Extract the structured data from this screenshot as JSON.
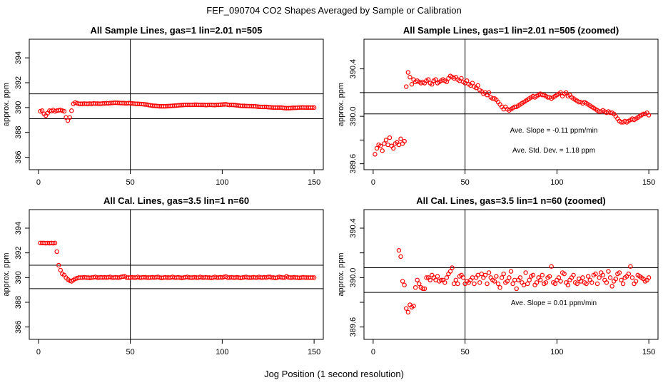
{
  "figure": {
    "title": "FEF_090704  CO2 Shapes Averaged by Sample or Calibration",
    "xlabel": "Jog Position (1 second resolution)"
  },
  "chart_data": [
    {
      "type": "scatter",
      "title": "All Sample Lines, gas=1 lin=2.01 n=505",
      "xlabel": "",
      "ylabel": "approx. ppm",
      "xlim": [
        -5,
        155
      ],
      "ylim": [
        385,
        395.5
      ],
      "xticks": [
        0,
        50,
        100,
        150
      ],
      "yticks": [
        386,
        388,
        390,
        392,
        394
      ],
      "hlines": [
        391.1,
        389.1
      ],
      "vline": 50,
      "annotations": [],
      "x": [
        1,
        2,
        3,
        4,
        5,
        6,
        7,
        8,
        9,
        10,
        11,
        12,
        13,
        14,
        15,
        16,
        17,
        18,
        19,
        20,
        21,
        22,
        23,
        24,
        25,
        26,
        27,
        28,
        29,
        30,
        31,
        32,
        33,
        34,
        35,
        36,
        37,
        38,
        39,
        40,
        41,
        42,
        43,
        44,
        45,
        46,
        47,
        48,
        49,
        50,
        51,
        52,
        53,
        54,
        55,
        56,
        57,
        58,
        59,
        60,
        61,
        62,
        63,
        64,
        65,
        66,
        67,
        68,
        69,
        70,
        71,
        72,
        73,
        74,
        75,
        76,
        77,
        78,
        79,
        80,
        81,
        82,
        83,
        84,
        85,
        86,
        87,
        88,
        89,
        90,
        91,
        92,
        93,
        94,
        95,
        96,
        97,
        98,
        99,
        100,
        101,
        102,
        103,
        104,
        105,
        106,
        107,
        108,
        109,
        110,
        111,
        112,
        113,
        114,
        115,
        116,
        117,
        118,
        119,
        120,
        121,
        122,
        123,
        124,
        125,
        126,
        127,
        128,
        129,
        130,
        131,
        132,
        133,
        134,
        135,
        136,
        137,
        138,
        139,
        140,
        141,
        142,
        143,
        144,
        145,
        146,
        147,
        148,
        149,
        150
      ],
      "y": [
        389.7,
        389.75,
        389.5,
        389.35,
        389.55,
        389.75,
        389.72,
        389.8,
        389.7,
        389.75,
        389.78,
        389.8,
        389.75,
        389.7,
        389.2,
        388.95,
        389.2,
        389.75,
        390.3,
        390.4,
        390.35,
        390.3,
        390.3,
        390.3,
        390.32,
        390.3,
        390.3,
        390.32,
        390.3,
        390.33,
        390.32,
        390.32,
        390.31,
        390.31,
        390.33,
        390.33,
        390.35,
        390.34,
        390.36,
        390.37,
        390.38,
        390.39,
        390.38,
        390.37,
        390.36,
        390.36,
        390.35,
        390.34,
        390.36,
        390.35,
        390.33,
        390.32,
        390.3,
        390.3,
        390.29,
        390.28,
        390.27,
        390.25,
        390.24,
        390.2,
        390.18,
        390.15,
        390.14,
        390.13,
        390.12,
        390.1,
        390.1,
        390.1,
        390.1,
        390.11,
        390.12,
        390.13,
        390.14,
        390.15,
        390.16,
        390.18,
        390.19,
        390.2,
        390.21,
        390.22,
        390.22,
        390.22,
        390.22,
        390.22,
        390.23,
        390.23,
        390.22,
        390.22,
        390.22,
        390.22,
        390.2,
        390.21,
        390.22,
        390.22,
        390.21,
        390.2,
        390.22,
        390.22,
        390.23,
        390.24,
        390.25,
        390.26,
        390.23,
        390.21,
        390.22,
        390.21,
        390.2,
        390.18,
        390.16,
        390.14,
        390.13,
        390.13,
        390.12,
        390.12,
        390.11,
        390.11,
        390.1,
        390.1,
        390.08,
        390.06,
        390.05,
        390.05,
        390.05,
        390.05,
        390.03,
        390.02,
        390.01,
        390.0,
        390.0,
        390.0,
        390.0,
        390.0,
        389.98,
        389.96,
        389.95,
        389.95,
        389.96,
        389.97,
        389.98,
        389.98,
        389.99,
        390.0,
        390.01,
        390.01,
        390.0,
        390.0,
        390.0,
        390.0,
        390.0,
        390.0
      ]
    },
    {
      "type": "scatter",
      "title": "All Sample Lines, gas=1 lin=2.01 n=505 (zoomed)",
      "xlabel": "",
      "ylabel": "approx. ppm",
      "xlim": [
        -5,
        155
      ],
      "ylim": [
        389.55,
        390.65
      ],
      "xticks": [
        0,
        50,
        100,
        150
      ],
      "yticks": [
        389.6,
        389.8,
        390.0,
        390.2,
        390.4
      ],
      "ytick_labels_shown": [
        "389.6",
        "390.0",
        "390.4"
      ],
      "hlines": [
        390.2,
        390.02
      ],
      "vline": 50,
      "annotations": [
        "Ave. Slope =  -0.11  ppm/min",
        "Ave. Std. Dev. =  1.18  ppm"
      ],
      "x": [
        1,
        2,
        3,
        4,
        5,
        6,
        7,
        8,
        9,
        10,
        11,
        12,
        13,
        14,
        15,
        16,
        17,
        18,
        19,
        20,
        21,
        22,
        23,
        24,
        25,
        26,
        27,
        28,
        29,
        30,
        31,
        32,
        33,
        34,
        35,
        36,
        37,
        38,
        39,
        40,
        41,
        42,
        43,
        44,
        45,
        46,
        47,
        48,
        49,
        50,
        51,
        52,
        53,
        54,
        55,
        56,
        57,
        58,
        59,
        60,
        61,
        62,
        63,
        64,
        65,
        66,
        67,
        68,
        69,
        70,
        71,
        72,
        73,
        74,
        75,
        76,
        77,
        78,
        79,
        80,
        81,
        82,
        83,
        84,
        85,
        86,
        87,
        88,
        89,
        90,
        91,
        92,
        93,
        94,
        95,
        96,
        97,
        98,
        99,
        100,
        101,
        102,
        103,
        104,
        105,
        106,
        107,
        108,
        109,
        110,
        111,
        112,
        113,
        114,
        115,
        116,
        117,
        118,
        119,
        120,
        121,
        122,
        123,
        124,
        125,
        126,
        127,
        128,
        129,
        130,
        131,
        132,
        133,
        134,
        135,
        136,
        137,
        138,
        139,
        140,
        141,
        142,
        143,
        144,
        145,
        146,
        147,
        148,
        149,
        150
      ],
      "y": [
        389.68,
        389.73,
        389.76,
        389.75,
        389.71,
        389.77,
        389.8,
        389.76,
        389.82,
        389.75,
        389.73,
        389.77,
        389.78,
        389.76,
        389.81,
        389.77,
        389.79,
        390.25,
        390.37,
        390.33,
        390.27,
        390.31,
        390.29,
        390.3,
        390.29,
        390.28,
        390.29,
        390.28,
        390.3,
        390.31,
        390.28,
        390.27,
        390.3,
        390.31,
        390.28,
        390.29,
        390.3,
        390.31,
        390.3,
        390.29,
        390.32,
        390.34,
        390.33,
        390.32,
        390.33,
        390.31,
        390.3,
        390.32,
        390.29,
        390.28,
        390.3,
        390.27,
        390.26,
        390.28,
        390.25,
        390.24,
        390.26,
        390.22,
        390.21,
        390.19,
        390.2,
        390.18,
        390.2,
        390.16,
        390.15,
        390.15,
        390.14,
        390.12,
        390.1,
        390.08,
        390.06,
        390.08,
        390.06,
        390.05,
        390.06,
        390.07,
        390.08,
        390.08,
        390.09,
        390.1,
        390.11,
        390.12,
        390.13,
        390.14,
        390.15,
        390.16,
        390.17,
        390.16,
        390.17,
        390.18,
        390.19,
        390.18,
        390.18,
        390.17,
        390.16,
        390.16,
        390.15,
        390.16,
        390.17,
        390.18,
        390.19,
        390.2,
        390.17,
        390.19,
        390.2,
        390.17,
        390.18,
        390.16,
        390.15,
        390.14,
        390.13,
        390.12,
        390.12,
        390.11,
        390.12,
        390.11,
        390.1,
        390.09,
        390.08,
        390.07,
        390.06,
        390.05,
        390.04,
        390.04,
        390.05,
        390.04,
        390.03,
        390.04,
        390.03,
        390.03,
        390.02,
        390.0,
        389.98,
        389.96,
        389.95,
        389.95,
        389.96,
        389.95,
        389.96,
        389.97,
        389.98,
        389.97,
        389.98,
        389.99,
        390.0,
        390.01,
        390.02,
        390.02,
        390.03,
        390.01
      ]
    },
    {
      "type": "scatter",
      "title": "All Cal. Lines, gas=3.5 lin=1 n=60",
      "xlabel": "",
      "ylabel": "approx. ppm",
      "xlim": [
        -5,
        155
      ],
      "ylim": [
        385,
        395.5
      ],
      "xticks": [
        0,
        50,
        100,
        150
      ],
      "yticks": [
        386,
        388,
        390,
        392,
        394
      ],
      "hlines": [
        391.0,
        389.1
      ],
      "vline": 50,
      "annotations": [],
      "x": [
        1,
        2,
        3,
        4,
        5,
        6,
        7,
        8,
        9,
        10,
        11,
        12,
        13,
        14,
        15,
        16,
        17,
        18,
        19,
        20,
        21,
        22,
        23,
        24,
        25,
        26,
        27,
        28,
        29,
        30,
        31,
        32,
        33,
        34,
        35,
        36,
        37,
        38,
        39,
        40,
        41,
        42,
        43,
        44,
        45,
        46,
        47,
        48,
        49,
        50,
        51,
        52,
        53,
        54,
        55,
        56,
        57,
        58,
        59,
        60,
        61,
        62,
        63,
        64,
        65,
        66,
        67,
        68,
        69,
        70,
        71,
        72,
        73,
        74,
        75,
        76,
        77,
        78,
        79,
        80,
        81,
        82,
        83,
        84,
        85,
        86,
        87,
        88,
        89,
        90,
        91,
        92,
        93,
        94,
        95,
        96,
        97,
        98,
        99,
        100,
        101,
        102,
        103,
        104,
        105,
        106,
        107,
        108,
        109,
        110,
        111,
        112,
        113,
        114,
        115,
        116,
        117,
        118,
        119,
        120,
        121,
        122,
        123,
        124,
        125,
        126,
        127,
        128,
        129,
        130,
        131,
        132,
        133,
        134,
        135,
        136,
        137,
        138,
        139,
        140,
        141,
        142,
        143,
        144,
        145,
        146,
        147,
        148,
        149,
        150
      ],
      "y": [
        392.8,
        392.8,
        392.8,
        392.78,
        392.8,
        392.78,
        392.8,
        392.78,
        392.8,
        392.1,
        391.0,
        390.6,
        390.3,
        390.2,
        390.0,
        389.85,
        389.75,
        389.7,
        389.8,
        389.9,
        389.95,
        390.0,
        390.0,
        390.0,
        390.02,
        390.0,
        390.0,
        389.98,
        390.0,
        390.02,
        390.05,
        390.0,
        390.0,
        390.02,
        390.0,
        390.02,
        390.0,
        390.02,
        390.05,
        390.0,
        390.0,
        390.02,
        390.0,
        390.0,
        390.05,
        390.08,
        390.1,
        390.0,
        390.0,
        390.0,
        390.02,
        390.0,
        390.0,
        390.05,
        390.0,
        390.0,
        390.02,
        390.02,
        390.0,
        390.0,
        390.0,
        390.02,
        390.0,
        390.02,
        390.05,
        390.0,
        389.98,
        390.0,
        390.02,
        390.0,
        390.0,
        390.0,
        390.05,
        390.0,
        390.0,
        390.02,
        390.0,
        389.98,
        390.0,
        390.02,
        390.05,
        390.0,
        390.0,
        390.0,
        390.02,
        390.0,
        390.0,
        390.05,
        390.0,
        390.0,
        390.02,
        390.0,
        390.0,
        389.98,
        390.0,
        390.05,
        390.0,
        390.0,
        390.02,
        390.0,
        390.05,
        390.08,
        390.0,
        390.0,
        390.02,
        390.0,
        390.0,
        390.02,
        390.0,
        389.98,
        390.0,
        390.02,
        390.05,
        390.0,
        390.0,
        390.0,
        390.02,
        390.0,
        390.0,
        390.05,
        390.0,
        390.0,
        390.02,
        390.0,
        390.05,
        390.05,
        390.0,
        390.0,
        389.98,
        390.0,
        390.05,
        390.02,
        390.0,
        390.0,
        390.1,
        390.02,
        390.0,
        390.0,
        390.02,
        390.0,
        390.0,
        389.98,
        390.0,
        390.02,
        390.0,
        390.0,
        390.0,
        390.0,
        390.0,
        390.0
      ]
    },
    {
      "type": "scatter",
      "title": "All Cal. Lines, gas=3.5 lin=1 n=60 (zoomed)",
      "xlabel": "",
      "ylabel": "approx. ppm",
      "xlim": [
        -5,
        155
      ],
      "ylim": [
        389.5,
        390.55
      ],
      "xticks": [
        0,
        50,
        100,
        150
      ],
      "yticks": [
        389.6,
        389.8,
        390.0,
        390.2,
        390.4
      ],
      "ytick_labels_shown": [
        "389.6",
        "390.0",
        "390.4"
      ],
      "hlines": [
        390.08,
        389.88
      ],
      "vline": 50,
      "annotations": [
        "Ave. Slope =  0.01  ppm/min"
      ],
      "x": [
        14,
        15,
        16,
        17,
        18,
        19,
        20,
        21,
        22,
        23,
        24,
        25,
        26,
        27,
        28,
        29,
        30,
        31,
        32,
        33,
        34,
        35,
        36,
        37,
        38,
        39,
        40,
        41,
        42,
        43,
        44,
        45,
        46,
        47,
        48,
        49,
        50,
        51,
        52,
        53,
        54,
        55,
        56,
        57,
        58,
        59,
        60,
        61,
        62,
        63,
        64,
        65,
        66,
        67,
        68,
        69,
        70,
        71,
        72,
        73,
        74,
        75,
        76,
        77,
        78,
        79,
        80,
        81,
        82,
        83,
        84,
        85,
        86,
        87,
        88,
        89,
        90,
        91,
        92,
        93,
        94,
        95,
        96,
        97,
        98,
        99,
        100,
        101,
        102,
        103,
        104,
        105,
        106,
        107,
        108,
        109,
        110,
        111,
        112,
        113,
        114,
        115,
        116,
        117,
        118,
        119,
        120,
        121,
        122,
        123,
        124,
        125,
        126,
        127,
        128,
        129,
        130,
        131,
        132,
        133,
        134,
        135,
        136,
        137,
        138,
        139,
        140,
        141,
        142,
        143,
        144,
        145,
        146,
        147,
        148,
        149,
        150
      ],
      "y": [
        390.22,
        390.17,
        389.97,
        389.94,
        389.75,
        389.72,
        389.78,
        389.76,
        389.77,
        389.92,
        389.98,
        389.95,
        389.92,
        389.91,
        389.91,
        390.0,
        390.0,
        389.98,
        390.02,
        390.0,
        389.98,
        390.01,
        389.97,
        389.98,
        389.98,
        389.96,
        390.0,
        390.03,
        390.05,
        390.08,
        389.95,
        389.98,
        389.95,
        390.01,
        390.02,
        390.0,
        389.95,
        389.97,
        389.96,
        389.98,
        390.0,
        389.95,
        390.0,
        390.02,
        389.96,
        390.03,
        390.0,
        390.02,
        389.95,
        390.04,
        390.0,
        389.98,
        389.97,
        390.01,
        389.95,
        389.92,
        390.0,
        390.03,
        389.96,
        389.97,
        390.0,
        390.05,
        389.95,
        389.98,
        389.91,
        389.98,
        390.0,
        389.96,
        389.94,
        390.04,
        389.95,
        389.98,
        390.01,
        390.02,
        389.94,
        389.96,
        390.0,
        389.98,
        390.02,
        389.95,
        389.96,
        390.0,
        390.01,
        390.09,
        389.96,
        389.95,
        389.98,
        390.0,
        389.97,
        390.04,
        390.03,
        389.96,
        389.94,
        389.98,
        390.0,
        390.02,
        389.96,
        389.95,
        389.99,
        389.97,
        390.0,
        389.96,
        389.95,
        390.01,
        389.98,
        389.96,
        390.02,
        390.03,
        389.95,
        390.0,
        390.04,
        390.02,
        389.98,
        389.96,
        390.05,
        390.0,
        389.93,
        389.97,
        389.99,
        390.03,
        390.04,
        389.98,
        389.95,
        390.0,
        390.01,
        390.03,
        390.09,
        390.0,
        389.95,
        389.97,
        390.02,
        390.01,
        390.0,
        389.99,
        389.97,
        389.98,
        390.0
      ]
    }
  ]
}
